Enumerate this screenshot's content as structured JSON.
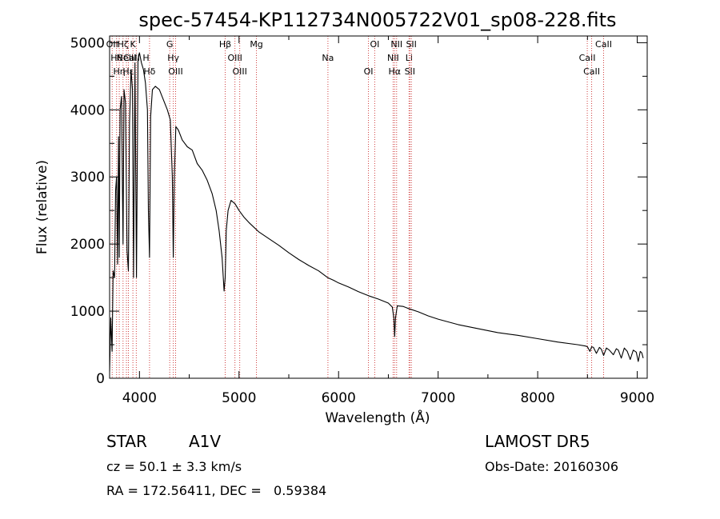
{
  "chart_data": {
    "type": "line",
    "title": "spec-57454-KP112734N005722V01_sp08-228.fits",
    "xlabel": "Wavelength (Å)",
    "ylabel": "Flux (relative)",
    "xlim": [
      3700,
      9100
    ],
    "ylim": [
      0,
      5100
    ],
    "x_ticks": [
      4000,
      5000,
      6000,
      7000,
      8000,
      9000
    ],
    "y_ticks": [
      0,
      1000,
      2000,
      3000,
      4000,
      5000
    ],
    "grid": false,
    "colors": {
      "line": "#000000",
      "marker_lines": "#d04040"
    },
    "series": [
      {
        "x": [
          3700,
          3712,
          3725,
          3735,
          3750,
          3760,
          3770,
          3780,
          3790,
          3797,
          3805,
          3820,
          3835,
          3845,
          3860,
          3875,
          3889,
          3900,
          3915,
          3930,
          3940,
          3955,
          3970,
          3985,
          4000,
          4020,
          4040,
          4060,
          4080,
          4090,
          4101,
          4112,
          4130,
          4160,
          4200,
          4240,
          4280,
          4310,
          4330,
          4340,
          4350,
          4365,
          4390,
          4430,
          4480,
          4530,
          4580,
          4630,
          4680,
          4730,
          4770,
          4800,
          4830,
          4850,
          4861,
          4872,
          4890,
          4920,
          4960,
          5000,
          5050,
          5100,
          5150,
          5200,
          5300,
          5400,
          5500,
          5600,
          5700,
          5800,
          5890,
          5950,
          6000,
          6100,
          6200,
          6300,
          6400,
          6500,
          6540,
          6555,
          6563,
          6572,
          6590,
          6650,
          6700,
          6800,
          6900,
          7000,
          7200,
          7400,
          7600,
          7800,
          8000,
          8200,
          8400,
          8480,
          8500,
          8525,
          8542,
          8560,
          8590,
          8620,
          8640,
          8662,
          8690,
          8720,
          8760,
          8790,
          8810,
          8840,
          8870,
          8900,
          8930,
          8960,
          8990,
          9010,
          9030,
          9045,
          9060
        ],
        "y": [
          100,
          900,
          400,
          1600,
          1500,
          2800,
          3000,
          1700,
          3600,
          1800,
          4000,
          4200,
          2000,
          4300,
          4100,
          1900,
          1600,
          3800,
          4600,
          4300,
          1500,
          4700,
          1500,
          4750,
          4850,
          4700,
          4600,
          4400,
          4000,
          2500,
          1800,
          3900,
          4300,
          4350,
          4300,
          4150,
          4000,
          3850,
          3000,
          1800,
          3000,
          3750,
          3700,
          3550,
          3450,
          3400,
          3200,
          3100,
          2950,
          2750,
          2500,
          2200,
          1800,
          1300,
          1500,
          2200,
          2500,
          2650,
          2600,
          2500,
          2400,
          2320,
          2250,
          2180,
          2080,
          1980,
          1870,
          1770,
          1680,
          1600,
          1500,
          1460,
          1420,
          1360,
          1290,
          1230,
          1180,
          1120,
          1060,
          900,
          620,
          900,
          1080,
          1070,
          1040,
          990,
          930,
          880,
          800,
          740,
          680,
          640,
          590,
          540,
          500,
          480,
          470,
          400,
          470,
          460,
          370,
          460,
          430,
          340,
          450,
          420,
          350,
          440,
          420,
          300,
          450,
          400,
          280,
          420,
          390,
          250,
          400,
          380,
          300
        ]
      }
    ],
    "line_markers": [
      {
        "wl": 3726,
        "text": "OII"
      },
      {
        "wl": 3770,
        "text": "Hθ"
      },
      {
        "wl": 3797,
        "text": "Hη"
      },
      {
        "wl": 3835,
        "text": "Hζ"
      },
      {
        "wl": 3869,
        "text": "NeIII"
      },
      {
        "wl": 3889,
        "text": "Hε"
      },
      {
        "wl": 3934,
        "text": "K"
      },
      {
        "wl": 3968,
        "text": "CaII H"
      },
      {
        "wl": 4101,
        "text": "Hδ"
      },
      {
        "wl": 4304,
        "text": "G"
      },
      {
        "wl": 4340,
        "text": "Hγ"
      },
      {
        "wl": 4363,
        "text": "OIII"
      },
      {
        "wl": 4861,
        "text": "Hβ"
      },
      {
        "wl": 4959,
        "text": "OIII"
      },
      {
        "wl": 5007,
        "text": "OIII"
      },
      {
        "wl": 5175,
        "text": "Mg"
      },
      {
        "wl": 5893,
        "text": "Na"
      },
      {
        "wl": 6300,
        "text": "OI"
      },
      {
        "wl": 6363,
        "text": "OI"
      },
      {
        "wl": 6548,
        "text": "NII"
      },
      {
        "wl": 6563,
        "text": "Hα"
      },
      {
        "wl": 6583,
        "text": "NII"
      },
      {
        "wl": 6708,
        "text": "Li"
      },
      {
        "wl": 6716,
        "text": "SII"
      },
      {
        "wl": 6731,
        "text": "SII"
      },
      {
        "wl": 8498,
        "text": "CaII"
      },
      {
        "wl": 8542,
        "text": "CaII"
      },
      {
        "wl": 8662,
        "text": "CaII"
      }
    ]
  },
  "info": {
    "object_class": "STAR",
    "subclass": "A1V",
    "cz": "cz = 50.1 ± 3.3 km/s",
    "coords": "RA = 172.56411, DEC =   0.59384",
    "survey": "LAMOST DR5",
    "obs_date": "Obs-Date: 20160306"
  }
}
